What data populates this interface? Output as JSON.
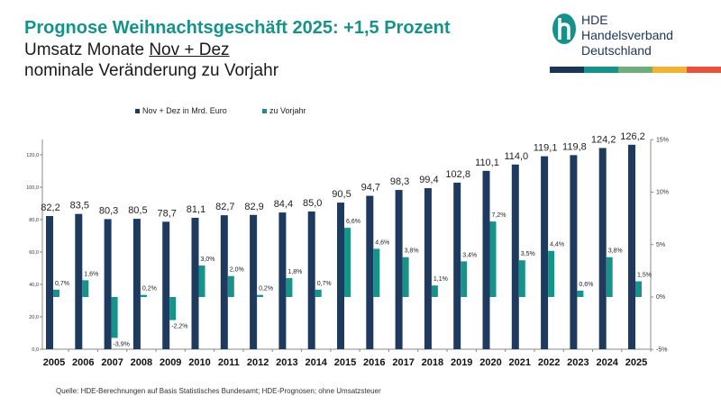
{
  "header": {
    "title": "Prognose Weihnachtsgeschäft 2025: +1,5 Prozent",
    "subtitle_prefix": "Umsatz Monate ",
    "subtitle_underlined": "Nov + Dez ",
    "subtitle2": "nominale Veränderung zu Vorjahr"
  },
  "logo": {
    "line1": "HDE",
    "line2": "Handelsverband",
    "line3": "Deutschland",
    "colors": [
      "#1d3557",
      "#17928a",
      "#6fae7a",
      "#f2b233",
      "#e5533d"
    ]
  },
  "source": "Quelle: HDE-Berechnungen auf Basis Statistisches Bundesamt; HDE-Prognosen; ohne Umsatzsteuer",
  "chart_data": {
    "type": "bar",
    "title": "",
    "categories": [
      "2005",
      "2006",
      "2007",
      "2008",
      "2009",
      "2010",
      "2011",
      "2012",
      "2013",
      "2014",
      "2015",
      "2016",
      "2017",
      "2018",
      "2019",
      "2020",
      "2021",
      "2022",
      "2023",
      "2024",
      "2025"
    ],
    "series": [
      {
        "name": "Nov + Dez in Mrd. Euro",
        "axis": "left",
        "color": "#1f3a5f",
        "values": [
          82.2,
          83.5,
          80.3,
          80.5,
          78.7,
          81.1,
          82.7,
          82.9,
          84.4,
          85.0,
          90.5,
          94.7,
          98.3,
          99.4,
          102.8,
          110.1,
          114.0,
          119.1,
          119.8,
          124.2,
          126.2
        ],
        "labels": [
          "82,2",
          "83,5",
          "80,3",
          "80,5",
          "78,7",
          "81,1",
          "82,7",
          "82,9",
          "84,4",
          "85,0",
          "90,5",
          "94,7",
          "98,3",
          "99,4",
          "102,8",
          "110,1",
          "114,0",
          "119,1",
          "119,8",
          "124,2",
          "126,2"
        ]
      },
      {
        "name": "zu Vorjahr",
        "axis": "right",
        "color": "#17938c",
        "values": [
          0.7,
          1.6,
          -3.9,
          0.2,
          -2.2,
          3.0,
          2.0,
          0.2,
          1.8,
          0.7,
          6.6,
          4.6,
          3.8,
          1.1,
          3.4,
          7.2,
          3.5,
          4.4,
          0.6,
          3.8,
          1.5
        ],
        "labels": [
          "0,7%",
          "1,6%",
          "-3,9%",
          "0,2%",
          "-2,2%",
          "3,0%",
          "2,0%",
          "0,2%",
          "1,8%",
          "0,7%",
          "6,6%",
          "4,6%",
          "3,8%",
          "1,1%",
          "3,4%",
          "7,2%",
          "3,5%",
          "4,4%",
          "0,6%",
          "3,8%",
          "1,5%"
        ]
      }
    ],
    "left_axis": {
      "ticks": [
        "0,0",
        "20,0",
        "40,0",
        "60,0",
        "80,0",
        "100,0",
        "120,0"
      ],
      "tick_values": [
        0,
        20,
        40,
        60,
        80,
        100,
        120
      ]
    },
    "right_axis": {
      "ticks": [
        "-5%",
        "0%",
        "5%",
        "10%",
        "15%"
      ],
      "tick_values": [
        -5,
        0,
        5,
        10,
        15
      ],
      "ylim": [
        -5,
        15
      ]
    },
    "legend_position": "top-center",
    "grid": false
  }
}
